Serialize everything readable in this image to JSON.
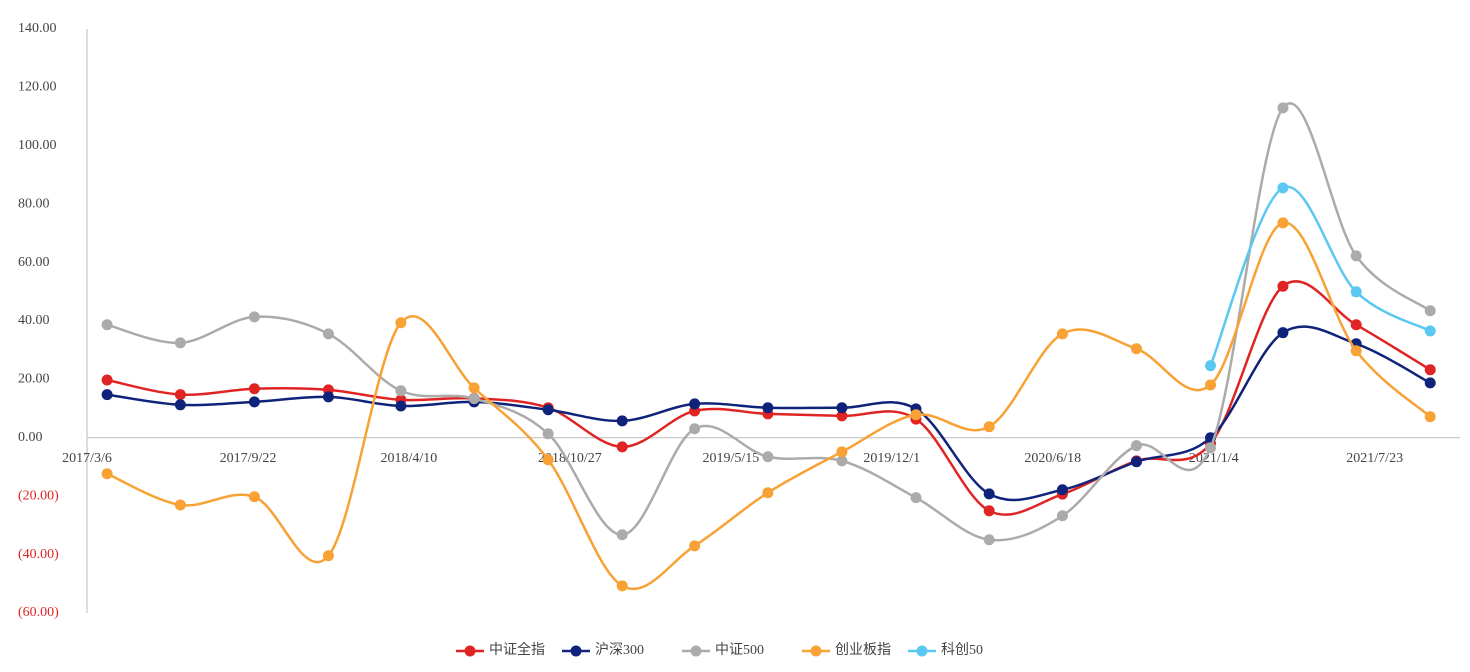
{
  "chart_data": {
    "type": "line",
    "x": [
      "2017/3/31",
      "2017/6/30",
      "2017/9/30",
      "2017/12/31",
      "2018/3/31",
      "2018/6/30",
      "2018/9/30",
      "2018/12/31",
      "2019/3/31",
      "2019/6/30",
      "2019/9/30",
      "2019/12/31",
      "2020/3/31",
      "2020/6/30",
      "2020/9/30",
      "2020/12/31",
      "2021/3/31",
      "2021/6/30",
      "2021/9/30"
    ],
    "xlim": [
      "2017/3/6",
      "2021/11/6"
    ],
    "xticks": [
      "2017/3/6",
      "2017/9/22",
      "2018/4/10",
      "2018/10/27",
      "2019/5/15",
      "2019/12/1",
      "2020/6/18",
      "2021/1/4",
      "2021/7/23"
    ],
    "ylim": [
      -60,
      140
    ],
    "yticks": [
      {
        "value": -60,
        "label": "(60.00)"
      },
      {
        "value": -40,
        "label": "(40.00)"
      },
      {
        "value": -20,
        "label": "(20.00)"
      },
      {
        "value": 0,
        "label": "0.00"
      },
      {
        "value": 20,
        "label": "20.00"
      },
      {
        "value": 40,
        "label": "40.00"
      },
      {
        "value": 60,
        "label": "60.00"
      },
      {
        "value": 80,
        "label": "80.00"
      },
      {
        "value": 100,
        "label": "100.00"
      },
      {
        "value": 120,
        "label": "120.00"
      },
      {
        "value": 140,
        "label": "140.00"
      }
    ],
    "smooth": true,
    "legend": "bottom",
    "series": [
      {
        "name": "中证全指",
        "color": "#e02424",
        "values": [
          19.8,
          14.8,
          16.8,
          16.4,
          13.0,
          13.5,
          10.3,
          -3.1,
          9.2,
          8.2,
          7.5,
          6.4,
          -25.0,
          -19.3,
          -7.9,
          -2.0,
          51.9,
          38.7,
          23.3
        ]
      },
      {
        "name": "沪深300",
        "color": "#0f237a",
        "values": [
          14.8,
          11.3,
          12.3,
          14.0,
          10.9,
          12.3,
          9.6,
          5.8,
          11.6,
          10.3,
          10.3,
          9.9,
          -19.2,
          -17.8,
          -8.2,
          0.0,
          36.0,
          32.2,
          18.8
        ]
      },
      {
        "name": "中证500",
        "color": "#ababab",
        "values": [
          38.7,
          32.5,
          41.4,
          35.6,
          16.1,
          13.4,
          1.4,
          -33.2,
          3.1,
          -6.5,
          -7.9,
          -20.5,
          -34.9,
          -26.7,
          -2.7,
          -3.4,
          113.0,
          62.3,
          43.5
        ]
      },
      {
        "name": "创业板指",
        "color": "#f8a134",
        "values": [
          -12.3,
          -23.0,
          -20.2,
          -40.4,
          39.4,
          17.1,
          -7.5,
          -50.7,
          -37.0,
          -18.8,
          -4.8,
          7.9,
          3.8,
          35.6,
          30.5,
          18.1,
          73.6,
          29.8,
          7.2
        ]
      },
      {
        "name": "科创50",
        "color": "#5ac8f0",
        "values": [
          null,
          null,
          null,
          null,
          null,
          null,
          null,
          null,
          null,
          null,
          null,
          null,
          null,
          null,
          null,
          24.7,
          85.6,
          50.0,
          36.6
        ]
      }
    ]
  }
}
